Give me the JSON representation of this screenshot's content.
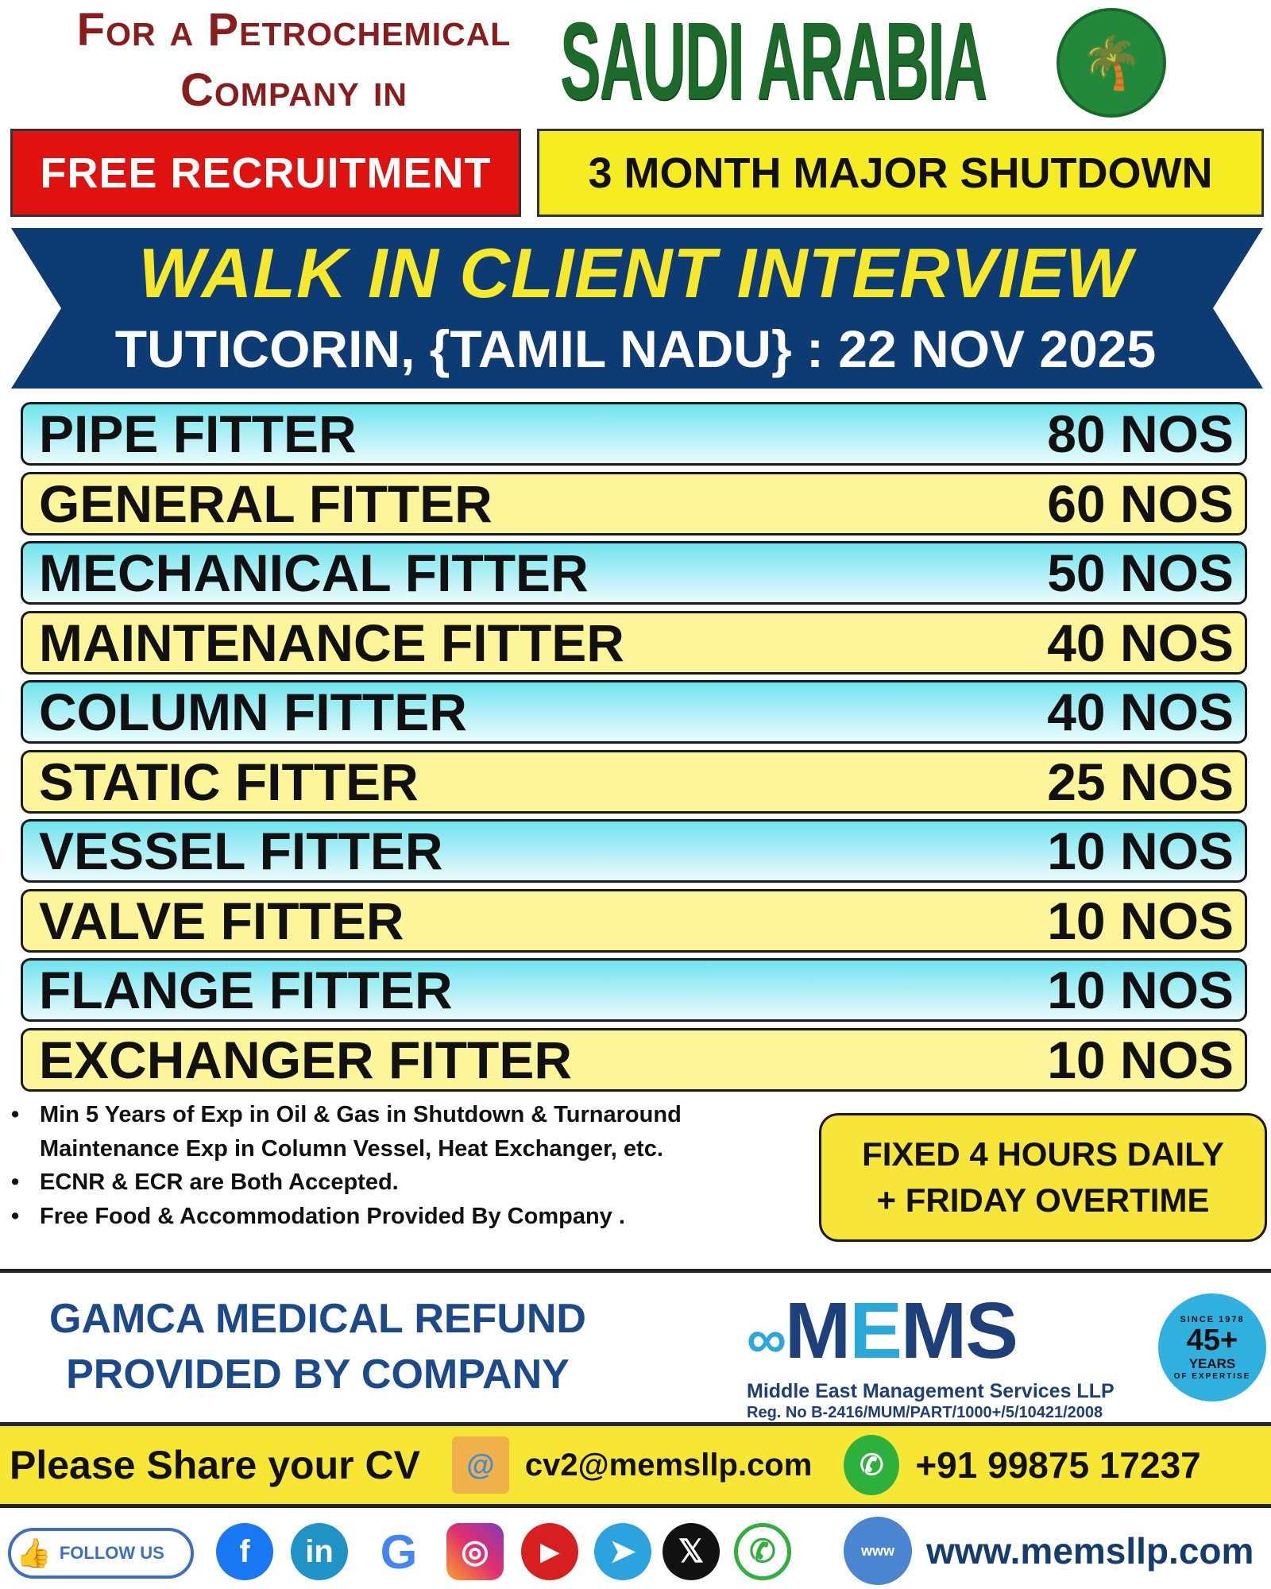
{
  "header": {
    "line1": "For a Petrochemical",
    "line2": "Company in",
    "country": "SAUDI ARABIA",
    "emblem_icon": "saudi-emblem-icon"
  },
  "tags": {
    "free": "FREE RECRUITMENT",
    "shutdown": "3 MONTH MAJOR SHUTDOWN"
  },
  "banner": {
    "title": "WALK IN CLIENT INTERVIEW",
    "subtitle": "TUTICORIN, {TAMIL NADU} : 22 NOV 2025"
  },
  "positions": [
    {
      "title": "PIPE FITTER",
      "count": "80 NOS"
    },
    {
      "title": "GENERAL FITTER",
      "count": "60 NOS"
    },
    {
      "title": "MECHANICAL FITTER",
      "count": "50 NOS"
    },
    {
      "title": "MAINTENANCE FITTER",
      "count": "40 NOS"
    },
    {
      "title": "COLUMN FITTER",
      "count": "40 NOS"
    },
    {
      "title": "STATIC FITTER",
      "count": "25 NOS"
    },
    {
      "title": "VESSEL FITTER",
      "count": "10 NOS"
    },
    {
      "title": "VALVE FITTER",
      "count": "10 NOS"
    },
    {
      "title": "FLANGE FITTER",
      "count": "10 NOS"
    },
    {
      "title": "EXCHANGER FITTER",
      "count": "10 NOS"
    }
  ],
  "requirements": [
    "Min 5 Years of Exp in Oil & Gas in Shutdown & Turnaround Maintenance Exp in Column Vessel, Heat Exchanger, etc.",
    "ECNR & ECR are Both Accepted.",
    "Free Food & Accommodation Provided By Company ."
  ],
  "hours": {
    "line1": "FIXED 4 HOURS DAILY",
    "line2": "+ FRIDAY OVERTIME"
  },
  "gamca": {
    "line1": "GAMCA MEDICAL REFUND",
    "line2": "PROVIDED BY COMPANY"
  },
  "company": {
    "logo_left": "M",
    "logo_mid": "E",
    "logo_right": "MS",
    "name": "Middle East Management Services LLP",
    "reg": "Reg. No B-2416/MUM/PART/1000+/5/10421/2008",
    "seal_top": "SINCE 1978",
    "seal_big": "45+",
    "seal_years": "YEARS",
    "seal_bottom": "OF EXPERTISE"
  },
  "contact": {
    "cta": "Please Share your CV",
    "email": "cv2@memsllp.com",
    "phone": "+91 99875 17237"
  },
  "footer": {
    "follow": "FOLLOW US",
    "website": "www.memsllp.com",
    "icons": [
      "facebook-icon",
      "linkedin-icon",
      "google-icon",
      "instagram-icon",
      "youtube-icon",
      "telegram-icon",
      "x-icon",
      "whatsapp-icon"
    ]
  },
  "colors": {
    "red": "#e0120f",
    "yellow": "#f5ec22",
    "navy": "#0c3c73",
    "cyan": "#6fe4ee",
    "green": "#1d6b2a"
  }
}
